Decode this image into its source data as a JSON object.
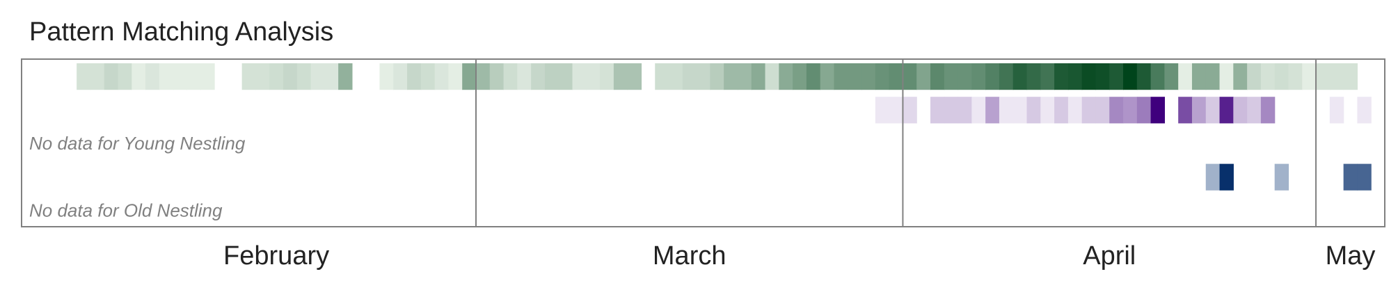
{
  "chart_data": {
    "type": "heatmap",
    "title": "Pattern Matching Analysis",
    "x_axis": {
      "type": "date",
      "range": [
        "2024-01-28",
        "2024-05-06"
      ],
      "month_labels": [
        {
          "label": "February",
          "start": "2024-02-01",
          "end": "2024-02-29"
        },
        {
          "label": "March",
          "start": "2024-03-01",
          "end": "2024-03-31"
        },
        {
          "label": "April",
          "start": "2024-04-01",
          "end": "2024-04-30"
        },
        {
          "label": "May",
          "start": "2024-05-01",
          "end": "2024-05-06"
        }
      ],
      "month_boundaries": [
        "2024-03-01",
        "2024-04-01",
        "2024-05-01"
      ]
    },
    "value_range": [
      0,
      1
    ],
    "rows": [
      {
        "row": 1,
        "colormap": "Greens",
        "cells": [
          [
            "2024-02-01",
            0.1
          ],
          [
            "2024-02-02",
            0.1
          ],
          [
            "2024-02-03",
            0.15
          ],
          [
            "2024-02-04",
            0.12
          ],
          [
            "2024-02-05",
            0.05
          ],
          [
            "2024-02-06",
            0.08
          ],
          [
            "2024-02-07",
            0.05
          ],
          [
            "2024-02-08",
            0.05
          ],
          [
            "2024-02-09",
            0.05
          ],
          [
            "2024-02-10",
            0.05
          ],
          [
            "2024-02-13",
            0.1
          ],
          [
            "2024-02-14",
            0.1
          ],
          [
            "2024-02-15",
            0.12
          ],
          [
            "2024-02-16",
            0.15
          ],
          [
            "2024-02-17",
            0.12
          ],
          [
            "2024-02-18",
            0.08
          ],
          [
            "2024-02-19",
            0.08
          ],
          [
            "2024-02-20",
            0.35
          ],
          [
            "2024-02-23",
            0.05
          ],
          [
            "2024-02-24",
            0.08
          ],
          [
            "2024-02-25",
            0.15
          ],
          [
            "2024-02-26",
            0.12
          ],
          [
            "2024-02-27",
            0.08
          ],
          [
            "2024-02-28",
            0.05
          ],
          [
            "2024-02-29",
            0.4
          ],
          [
            "2024-03-01",
            0.3
          ],
          [
            "2024-03-02",
            0.2
          ],
          [
            "2024-03-03",
            0.12
          ],
          [
            "2024-03-04",
            0.08
          ],
          [
            "2024-03-05",
            0.15
          ],
          [
            "2024-03-06",
            0.18
          ],
          [
            "2024-03-07",
            0.18
          ],
          [
            "2024-03-08",
            0.08
          ],
          [
            "2024-03-09",
            0.08
          ],
          [
            "2024-03-10",
            0.1
          ],
          [
            "2024-03-11",
            0.25
          ],
          [
            "2024-03-12",
            0.25
          ],
          [
            "2024-03-14",
            0.12
          ],
          [
            "2024-03-15",
            0.12
          ],
          [
            "2024-03-16",
            0.15
          ],
          [
            "2024-03-17",
            0.15
          ],
          [
            "2024-03-18",
            0.2
          ],
          [
            "2024-03-19",
            0.3
          ],
          [
            "2024-03-20",
            0.3
          ],
          [
            "2024-03-21",
            0.38
          ],
          [
            "2024-03-22",
            0.12
          ],
          [
            "2024-03-23",
            0.38
          ],
          [
            "2024-03-24",
            0.45
          ],
          [
            "2024-03-25",
            0.55
          ],
          [
            "2024-03-26",
            0.4
          ],
          [
            "2024-03-27",
            0.48
          ],
          [
            "2024-03-28",
            0.48
          ],
          [
            "2024-03-29",
            0.48
          ],
          [
            "2024-03-30",
            0.52
          ],
          [
            "2024-03-31",
            0.55
          ],
          [
            "2024-04-01",
            0.55
          ],
          [
            "2024-04-02",
            0.42
          ],
          [
            "2024-04-03",
            0.58
          ],
          [
            "2024-04-04",
            0.52
          ],
          [
            "2024-04-05",
            0.52
          ],
          [
            "2024-04-06",
            0.55
          ],
          [
            "2024-04-07",
            0.62
          ],
          [
            "2024-04-08",
            0.7
          ],
          [
            "2024-04-09",
            0.82
          ],
          [
            "2024-04-10",
            0.76
          ],
          [
            "2024-04-11",
            0.7
          ],
          [
            "2024-04-12",
            0.86
          ],
          [
            "2024-04-13",
            0.88
          ],
          [
            "2024-04-14",
            0.95
          ],
          [
            "2024-04-15",
            0.93
          ],
          [
            "2024-04-16",
            0.86
          ],
          [
            "2024-04-17",
            1.0
          ],
          [
            "2024-04-18",
            0.86
          ],
          [
            "2024-04-19",
            0.66
          ],
          [
            "2024-04-20",
            0.52
          ],
          [
            "2024-04-21",
            0.05
          ],
          [
            "2024-04-22",
            0.38
          ],
          [
            "2024-04-23",
            0.38
          ],
          [
            "2024-04-24",
            0.05
          ],
          [
            "2024-04-25",
            0.35
          ],
          [
            "2024-04-26",
            0.15
          ],
          [
            "2024-04-27",
            0.1
          ],
          [
            "2024-04-28",
            0.12
          ],
          [
            "2024-04-29",
            0.1
          ],
          [
            "2024-04-30",
            0.05
          ],
          [
            "2024-05-01",
            0.1
          ],
          [
            "2024-05-02",
            0.1
          ],
          [
            "2024-05-03",
            0.1
          ]
        ]
      },
      {
        "row": 2,
        "colormap": "Purples",
        "cells": [
          [
            "2024-03-30",
            0.05
          ],
          [
            "2024-03-31",
            0.05
          ],
          [
            "2024-04-01",
            0.1
          ],
          [
            "2024-04-03",
            0.15
          ],
          [
            "2024-04-04",
            0.15
          ],
          [
            "2024-04-05",
            0.15
          ],
          [
            "2024-04-06",
            0.05
          ],
          [
            "2024-04-07",
            0.3
          ],
          [
            "2024-04-08",
            0.05
          ],
          [
            "2024-04-09",
            0.05
          ],
          [
            "2024-04-10",
            0.15
          ],
          [
            "2024-04-11",
            0.05
          ],
          [
            "2024-04-12",
            0.15
          ],
          [
            "2024-04-13",
            0.05
          ],
          [
            "2024-04-14",
            0.15
          ],
          [
            "2024-04-15",
            0.15
          ],
          [
            "2024-04-16",
            0.4
          ],
          [
            "2024-04-17",
            0.35
          ],
          [
            "2024-04-18",
            0.45
          ],
          [
            "2024-04-19",
            1.0
          ],
          [
            "2024-04-21",
            0.65
          ],
          [
            "2024-04-22",
            0.3
          ],
          [
            "2024-04-23",
            0.15
          ],
          [
            "2024-04-24",
            0.85
          ],
          [
            "2024-04-25",
            0.2
          ],
          [
            "2024-04-26",
            0.15
          ],
          [
            "2024-04-27",
            0.4
          ],
          [
            "2024-05-02",
            0.05
          ],
          [
            "2024-05-04",
            0.05
          ]
        ]
      },
      {
        "row": 3,
        "colormap": "Greens",
        "no_data_label": "No data for Young Nestling",
        "cells": []
      },
      {
        "row": 4,
        "colormap": "Blues",
        "cells": [
          [
            "2024-04-23",
            0.3
          ],
          [
            "2024-04-24",
            1.0
          ],
          [
            "2024-04-28",
            0.3
          ],
          [
            "2024-05-03",
            0.7
          ],
          [
            "2024-05-04",
            0.7
          ]
        ]
      },
      {
        "row": 5,
        "colormap": "Greens",
        "no_data_label": "No data for Old Nestling",
        "cells": []
      }
    ],
    "colors": {
      "greens_low": "#f7fcf5",
      "greens_high": "#00441b",
      "purples_low": "#fcfbfd",
      "purples_high": "#3f007d",
      "blues_low": "#f7fbff",
      "blues_high": "#08306b",
      "frame": "#808080",
      "title": "#222222",
      "nodata_text": "#808080"
    }
  }
}
